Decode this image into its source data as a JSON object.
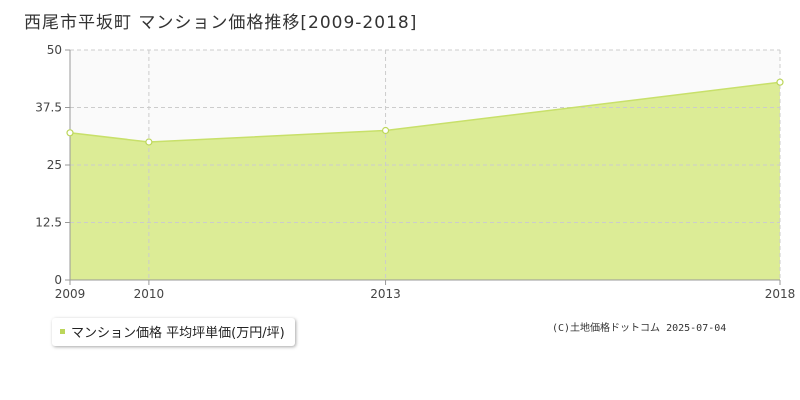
{
  "title": "西尾市平坂町 マンション価格推移[2009-2018]",
  "legend": {
    "label": "マンション価格 平均坪単価(万円/坪)"
  },
  "credit": "(C)土地価格ドットコム 2025-07-04",
  "colors": {
    "area_fill": "#dcec96",
    "line": "#c8e06a",
    "point_fill": "#ffffff",
    "point_stroke": "#bcd65a",
    "grid": "#cccccc",
    "axis": "#999999"
  },
  "chart_data": {
    "type": "area",
    "title": "西尾市平坂町 マンション価格推移[2009-2018]",
    "xlabel": "",
    "ylabel": "",
    "x": [
      2009,
      2010,
      2013,
      2018
    ],
    "x_tick_labels": [
      "2009",
      "2010",
      "2013",
      "2018"
    ],
    "ylim": [
      0,
      50
    ],
    "y_ticks": [
      0,
      12.5,
      25,
      37.5,
      50
    ],
    "y_tick_labels": [
      "0",
      "12.5",
      "25",
      "37.5",
      "50"
    ],
    "grid": true,
    "legend_position": "bottom-left",
    "series": [
      {
        "name": "マンション価格 平均坪単価(万円/坪)",
        "values": [
          32,
          30,
          32.5,
          43
        ]
      }
    ]
  }
}
